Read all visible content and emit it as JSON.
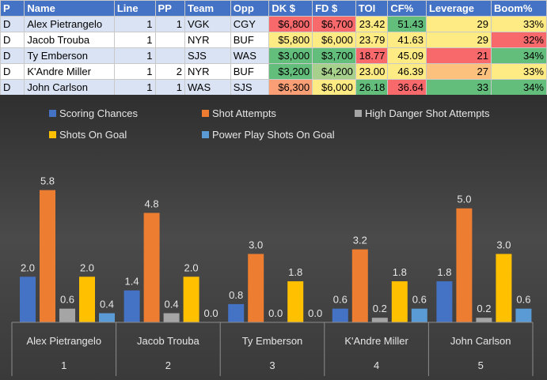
{
  "table": {
    "headers": [
      "P",
      "Name",
      "Line",
      "PP",
      "Team",
      "Opp",
      "DK $",
      "FD $",
      "TOI",
      "CF%",
      "Leverage",
      "Boom%"
    ],
    "rows": [
      [
        "D",
        "Alex Pietrangelo",
        "1",
        "1",
        "VGK",
        "CGY",
        "$6,800",
        "$6,700",
        "23.42",
        "51.43",
        "29",
        "33%"
      ],
      [
        "D",
        "Jacob Trouba",
        "1",
        "",
        "NYR",
        "BUF",
        "$5,800",
        "$6,000",
        "23.79",
        "41.63",
        "29",
        "32%"
      ],
      [
        "D",
        "Ty Emberson",
        "1",
        "",
        "SJS",
        "WAS",
        "$3,000",
        "$3,700",
        "18.77",
        "45.09",
        "21",
        "34%"
      ],
      [
        "D",
        "K'Andre Miller",
        "1",
        "2",
        "NYR",
        "BUF",
        "$3,200",
        "$4,200",
        "23.00",
        "46.39",
        "27",
        "33%"
      ],
      [
        "D",
        "John Carlson",
        "1",
        "1",
        "WAS",
        "SJS",
        "$6,300",
        "$6,000",
        "26.18",
        "36.64",
        "33",
        "34%"
      ]
    ],
    "cell_colors": {
      "6": [
        "#f8696b",
        "#ffeb84",
        "#63be7b",
        "#63be7b",
        "#fa9e75"
      ],
      "7": [
        "#f8696b",
        "#ffeb84",
        "#63be7b",
        "#a8d08d",
        "#ffeb84"
      ],
      "8": [
        "#ffeb84",
        "#ffeb84",
        "#f8696b",
        "#ffeb84",
        "#63be7b"
      ],
      "9": [
        "#63be7b",
        "#ffeb84",
        "#ffeb84",
        "#ffeb84",
        "#f8696b"
      ],
      "10": [
        "#ffeb84",
        "#ffeb84",
        "#f8696b",
        "#fcc17c",
        "#63be7b"
      ],
      "11": [
        "#ffeb84",
        "#f8696b",
        "#63be7b",
        "#ffeb84",
        "#63be7b"
      ]
    }
  },
  "chart_data": {
    "type": "bar",
    "categories": [
      "Alex Pietrangelo",
      "Jacob Trouba",
      "Ty Emberson",
      "K'Andre Miller",
      "John Carlson"
    ],
    "category_numbers": [
      "1",
      "2",
      "3",
      "4",
      "5"
    ],
    "series": [
      {
        "name": "Scoring Chances",
        "color": "#4472c4",
        "values": [
          2.0,
          1.4,
          0.8,
          0.6,
          1.8
        ]
      },
      {
        "name": "Shot Attempts",
        "color": "#ed7d31",
        "values": [
          5.8,
          4.8,
          3.0,
          3.2,
          5.0
        ]
      },
      {
        "name": "High Danger Shot Attempts",
        "color": "#a5a5a5",
        "values": [
          0.6,
          0.4,
          0.0,
          0.2,
          0.2
        ]
      },
      {
        "name": "Shots On Goal",
        "color": "#ffc000",
        "values": [
          2.0,
          2.0,
          1.8,
          1.8,
          3.0
        ]
      },
      {
        "name": "Power Play Shots On Goal",
        "color": "#5b9bd5",
        "values": [
          0.4,
          0.0,
          0.0,
          0.6,
          0.6
        ]
      }
    ],
    "value_format": "0.0",
    "legend_position": "top",
    "ylim": [
      0,
      7
    ]
  }
}
